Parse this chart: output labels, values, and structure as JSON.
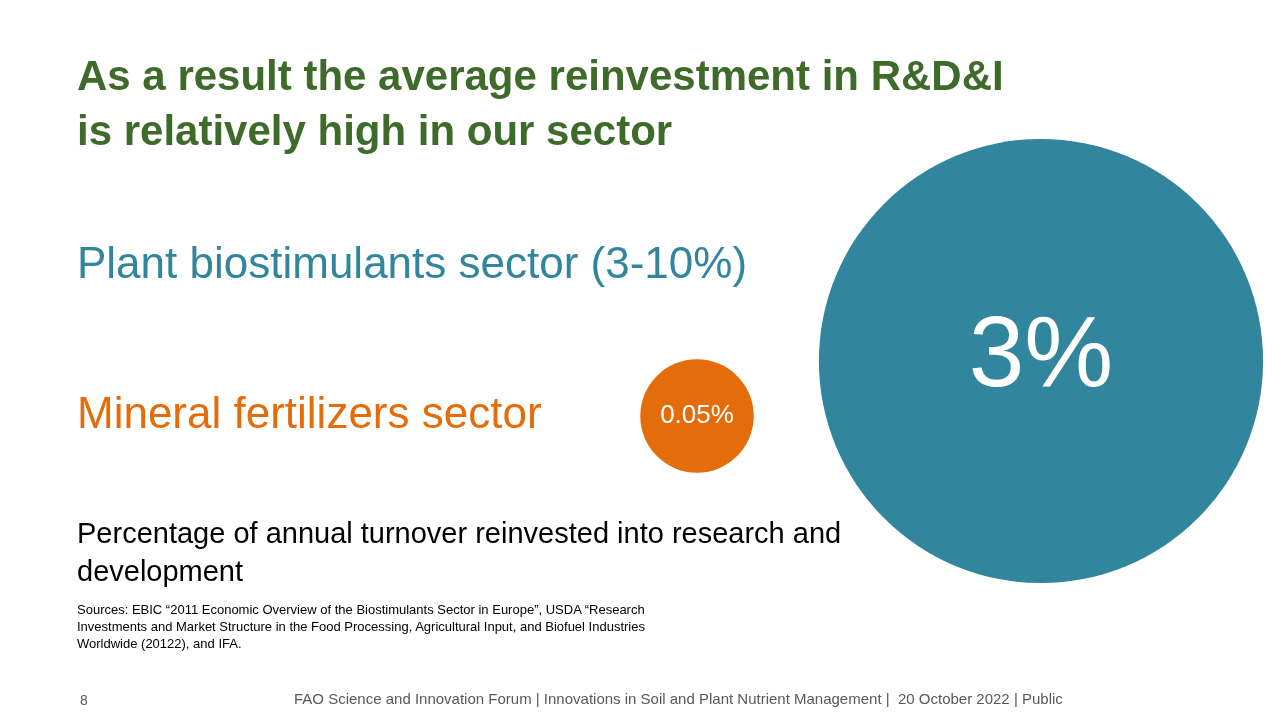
{
  "chart_data": {
    "type": "other",
    "title": "As a result the average reinvestment in R&D&I is relatively high in our sector",
    "categories": [
      "Plant biostimulants sector (3-10%)",
      "Mineral fertilizers sector"
    ],
    "values": [
      3,
      0.05
    ],
    "value_labels": [
      "3%",
      "0.05%"
    ],
    "colors": [
      "#31859c",
      "#e46c0a"
    ],
    "annotations": [
      "Percentage of annual turnover reinvested into research and development",
      "Sources: EBIC “2011 Economic Overview of the Biostimulants Sector in Europe”, USDA “Research Investments and Market Structure in the Food Processing, Agricultural Input, and Biofuel Industries Worldwide (20122), and IFA.",
      "FAO Science and Innovation Forum | Innovations in Soil and Plant Nutrient Management |  20 October 2022 | Public",
      "8"
    ]
  }
}
